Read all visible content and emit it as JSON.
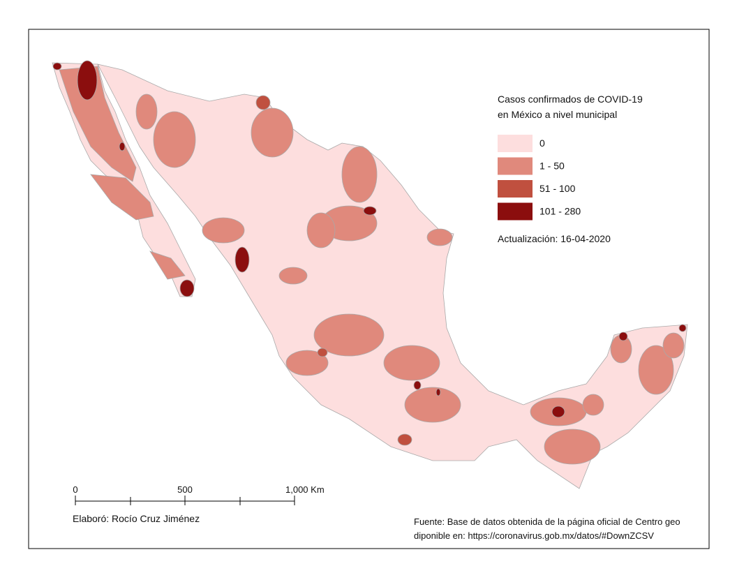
{
  "legend": {
    "title": [
      "Casos confirmados de COVID-19",
      "en México a nivel municipal"
    ],
    "items": [
      {
        "label": "0",
        "color": "#fddede"
      },
      {
        "label": "1 - 50",
        "color": "#e0897c"
      },
      {
        "label": "51 - 100",
        "color": "#c0503f"
      },
      {
        "label": "101 - 280",
        "color": "#8b0e0e"
      }
    ]
  },
  "update": "Actualización: 16-04-2020",
  "scale_bar": {
    "labels": [
      "0",
      "500",
      "1,000 Km"
    ]
  },
  "credits": {
    "author": "Elaboró:  Rocío Cruz Jiménez",
    "source": [
      "Fuente: Base de datos obtenida de la página oficial de Centro geo",
      "diponible en: https://coronavirus.gob.mx/datos/#DownZCSV"
    ]
  }
}
